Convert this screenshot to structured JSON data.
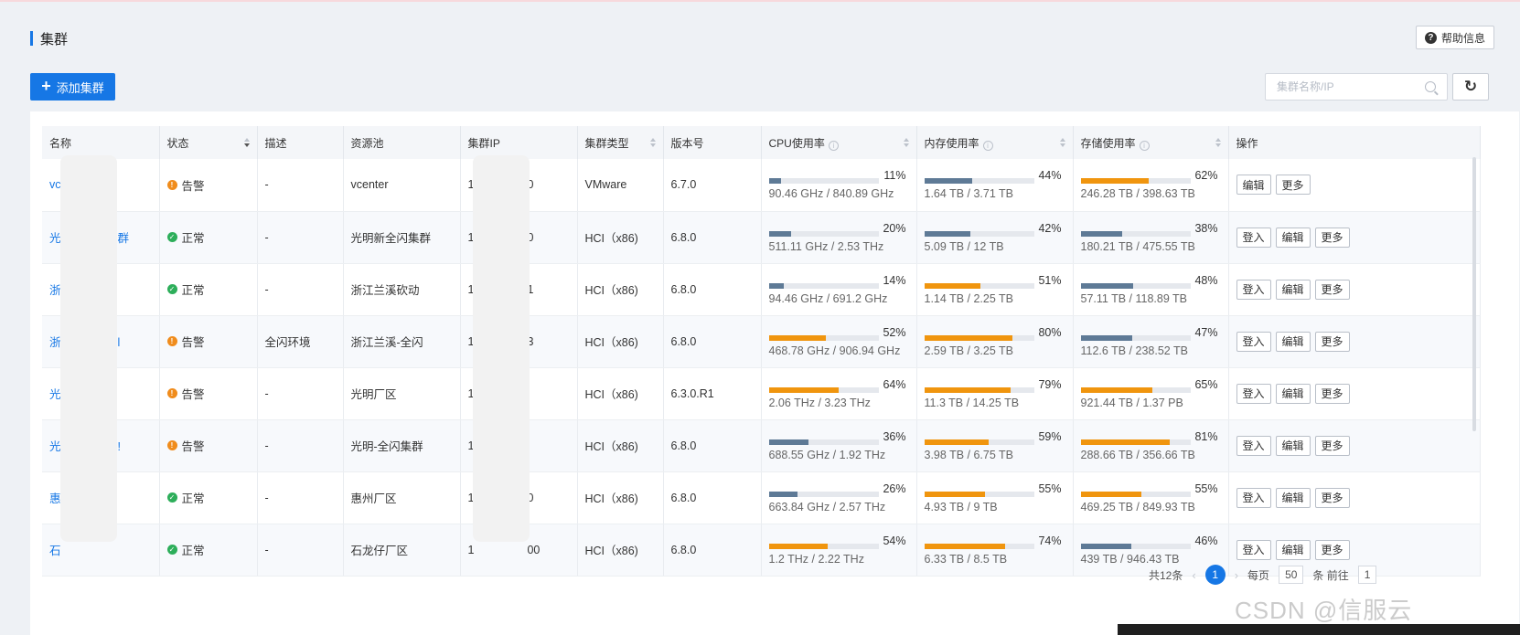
{
  "page": {
    "title": "集群",
    "help_label": "帮助信息"
  },
  "toolbar": {
    "add_label": "添加集群",
    "search_placeholder": "集群名称/IP",
    "refresh_icon": "refresh-icon"
  },
  "columns": [
    "名称",
    "状态",
    "描述",
    "资源池",
    "集群IP",
    "集群类型",
    "版本号",
    "CPU使用率",
    "内存使用率",
    "存储使用率",
    "操作"
  ],
  "rows": [
    {
      "name": "vc",
      "status": "告警",
      "status_type": "warn",
      "desc": "-",
      "pool": "vcenter",
      "ip_start": "1",
      "ip_end": "0",
      "type": "VMware",
      "version": "6.7.0",
      "cpu": {
        "pct": "11%",
        "value": "90.46 GHz / 840.89 GHz",
        "fill": 0.11,
        "color": "#5e7a96"
      },
      "mem": {
        "pct": "44%",
        "value": "1.64 TB / 3.71 TB",
        "fill": 0.44,
        "color": "#5e7a96"
      },
      "sto": {
        "pct": "62%",
        "value": "246.28 TB / 398.63 TB",
        "fill": 0.62,
        "color": "#f0950e"
      },
      "ops": [
        "编辑",
        "更多"
      ]
    },
    {
      "name": "光",
      "name_tail": "群",
      "status": "正常",
      "status_type": "ok",
      "desc": "-",
      "pool": "光明新全闪集群",
      "ip_start": "1",
      "ip_end": "0",
      "type": "HCI（x86)",
      "version": "6.8.0",
      "cpu": {
        "pct": "20%",
        "value": "511.11 GHz / 2.53 THz",
        "fill": 0.2,
        "color": "#5e7a96"
      },
      "mem": {
        "pct": "42%",
        "value": "5.09 TB / 12 TB",
        "fill": 0.42,
        "color": "#5e7a96"
      },
      "sto": {
        "pct": "38%",
        "value": "180.21 TB / 475.55 TB",
        "fill": 0.38,
        "color": "#5e7a96"
      },
      "ops": [
        "登入",
        "编辑",
        "更多"
      ]
    },
    {
      "name": "浙",
      "status": "正常",
      "status_type": "ok",
      "desc": "-",
      "pool": "浙江兰溪砍动",
      "ip_start": "1",
      "ip_end": "1",
      "type": "HCI（x86)",
      "version": "6.8.0",
      "cpu": {
        "pct": "14%",
        "value": "94.46 GHz / 691.2 GHz",
        "fill": 0.14,
        "color": "#5e7a96"
      },
      "mem": {
        "pct": "51%",
        "value": "1.14 TB / 2.25 TB",
        "fill": 0.51,
        "color": "#f0950e"
      },
      "sto": {
        "pct": "48%",
        "value": "57.11 TB / 118.89 TB",
        "fill": 0.48,
        "color": "#5e7a96"
      },
      "ops": [
        "登入",
        "编辑",
        "更多"
      ]
    },
    {
      "name": "浙",
      "name_tail": "l",
      "status": "告警",
      "status_type": "warn",
      "desc": "全闪环境",
      "pool": "浙江兰溪-全闪",
      "ip_start": "1",
      "ip_end": "3",
      "type": "HCI（x86)",
      "version": "6.8.0",
      "cpu": {
        "pct": "52%",
        "value": "468.78 GHz / 906.94 GHz",
        "fill": 0.52,
        "color": "#f0950e"
      },
      "mem": {
        "pct": "80%",
        "value": "2.59 TB / 3.25 TB",
        "fill": 0.8,
        "color": "#f0950e"
      },
      "sto": {
        "pct": "47%",
        "value": "112.6 TB / 238.52 TB",
        "fill": 0.47,
        "color": "#5e7a96"
      },
      "ops": [
        "登入",
        "编辑",
        "更多"
      ]
    },
    {
      "name": "光",
      "status": "告警",
      "status_type": "warn",
      "desc": "-",
      "pool": "光明厂区",
      "ip_start": "1",
      "ip_end": "",
      "type": "HCI（x86)",
      "version": "6.3.0.R1",
      "cpu": {
        "pct": "64%",
        "value": "2.06 THz / 3.23 THz",
        "fill": 0.64,
        "color": "#f0950e"
      },
      "mem": {
        "pct": "79%",
        "value": "11.3 TB / 14.25 TB",
        "fill": 0.79,
        "color": "#f0950e"
      },
      "sto": {
        "pct": "65%",
        "value": "921.44 TB / 1.37 PB",
        "fill": 0.65,
        "color": "#f0950e"
      },
      "ops": [
        "登入",
        "编辑",
        "更多"
      ]
    },
    {
      "name": "光",
      "name_tail": "!",
      "status": "告警",
      "status_type": "warn",
      "desc": "-",
      "pool": "光明-全闪集群",
      "ip_start": "1",
      "ip_end": "",
      "type": "HCI（x86)",
      "version": "6.8.0",
      "cpu": {
        "pct": "36%",
        "value": "688.55 GHz / 1.92 THz",
        "fill": 0.36,
        "color": "#5e7a96"
      },
      "mem": {
        "pct": "59%",
        "value": "3.98 TB / 6.75 TB",
        "fill": 0.59,
        "color": "#f0950e"
      },
      "sto": {
        "pct": "81%",
        "value": "288.66 TB / 356.66 TB",
        "fill": 0.81,
        "color": "#f0950e"
      },
      "ops": [
        "登入",
        "编辑",
        "更多"
      ]
    },
    {
      "name": "惠",
      "status": "正常",
      "status_type": "ok",
      "desc": "-",
      "pool": "惠州厂区",
      "ip_start": "1",
      "ip_end": "0",
      "type": "HCI（x86)",
      "version": "6.8.0",
      "cpu": {
        "pct": "26%",
        "value": "663.84 GHz / 2.57 THz",
        "fill": 0.26,
        "color": "#5e7a96"
      },
      "mem": {
        "pct": "55%",
        "value": "4.93 TB / 9 TB",
        "fill": 0.55,
        "color": "#f0950e"
      },
      "sto": {
        "pct": "55%",
        "value": "469.25 TB / 849.93 TB",
        "fill": 0.55,
        "color": "#f0950e"
      },
      "ops": [
        "登入",
        "编辑",
        "更多"
      ]
    },
    {
      "name": "石",
      "status": "正常",
      "status_type": "ok",
      "desc": "-",
      "pool": "石龙仔厂区",
      "ip_start": "1",
      "ip_end": "00",
      "type": "HCI（x86)",
      "version": "6.8.0",
      "cpu": {
        "pct": "54%",
        "value": "1.2 THz / 2.22 THz",
        "fill": 0.54,
        "color": "#f0950e"
      },
      "mem": {
        "pct": "74%",
        "value": "6.33 TB / 8.5 TB",
        "fill": 0.74,
        "color": "#f0950e"
      },
      "sto": {
        "pct": "46%",
        "value": "439 TB / 946.43 TB",
        "fill": 0.46,
        "color": "#5e7a96"
      },
      "ops": [
        "登入",
        "编辑",
        "更多"
      ]
    }
  ],
  "pagination": {
    "total": "共12条",
    "current": "1",
    "per_page_label": "每页",
    "per_page": "50",
    "goto_label": "条 前往",
    "goto_value": "1"
  },
  "watermark": "CSDN @信服云"
}
